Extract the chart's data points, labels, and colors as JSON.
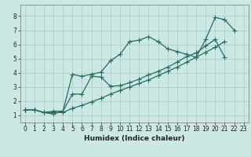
{
  "xlabel": "Humidex (Indice chaleur)",
  "bg_color": "#cce8e5",
  "grid_color": "#b0d0cd",
  "line_color": "#2a6b62",
  "xlim": [
    -0.5,
    23.5
  ],
  "ylim": [
    0.5,
    8.8
  ],
  "xticks": [
    0,
    1,
    2,
    3,
    4,
    5,
    6,
    7,
    8,
    9,
    10,
    11,
    12,
    13,
    14,
    15,
    16,
    17,
    18,
    19,
    20,
    21,
    22,
    23
  ],
  "yticks": [
    1,
    2,
    3,
    4,
    5,
    6,
    7,
    8
  ],
  "line1_x": [
    0,
    1,
    2,
    3,
    4,
    5,
    6,
    7,
    8,
    9,
    10,
    11,
    12,
    13,
    14,
    15,
    16,
    17,
    18,
    19,
    20,
    21,
    22
  ],
  "line1_y": [
    1.4,
    1.4,
    1.2,
    1.1,
    1.3,
    3.9,
    3.75,
    3.9,
    4.05,
    4.85,
    5.3,
    6.2,
    6.3,
    6.55,
    6.2,
    5.7,
    5.5,
    5.3,
    5.1,
    6.35,
    7.9,
    7.75,
    7.0
  ],
  "line2_x": [
    0,
    1,
    2,
    3,
    4,
    5,
    6,
    7,
    8,
    9,
    10,
    11,
    12,
    13,
    14,
    15,
    16,
    17,
    18,
    19,
    20,
    21
  ],
  "line2_y": [
    1.4,
    1.4,
    1.2,
    1.3,
    1.3,
    2.5,
    2.5,
    3.75,
    3.7,
    3.05,
    3.1,
    3.3,
    3.55,
    3.85,
    4.1,
    4.4,
    4.75,
    5.15,
    5.4,
    5.9,
    6.35,
    5.1
  ],
  "line3_x": [
    0,
    1,
    2,
    3,
    4,
    5,
    6,
    7,
    8,
    9,
    10,
    11,
    12,
    13,
    14,
    15,
    16,
    17,
    18,
    19,
    20,
    21
  ],
  "line3_y": [
    1.4,
    1.4,
    1.2,
    1.2,
    1.2,
    1.5,
    1.7,
    1.95,
    2.2,
    2.5,
    2.75,
    3.0,
    3.25,
    3.5,
    3.8,
    4.1,
    4.4,
    4.75,
    5.1,
    5.45,
    5.8,
    6.2
  ],
  "marker_size": 2.5,
  "linewidth": 0.9,
  "tick_fontsize": 5.5,
  "xlabel_fontsize": 6.5
}
